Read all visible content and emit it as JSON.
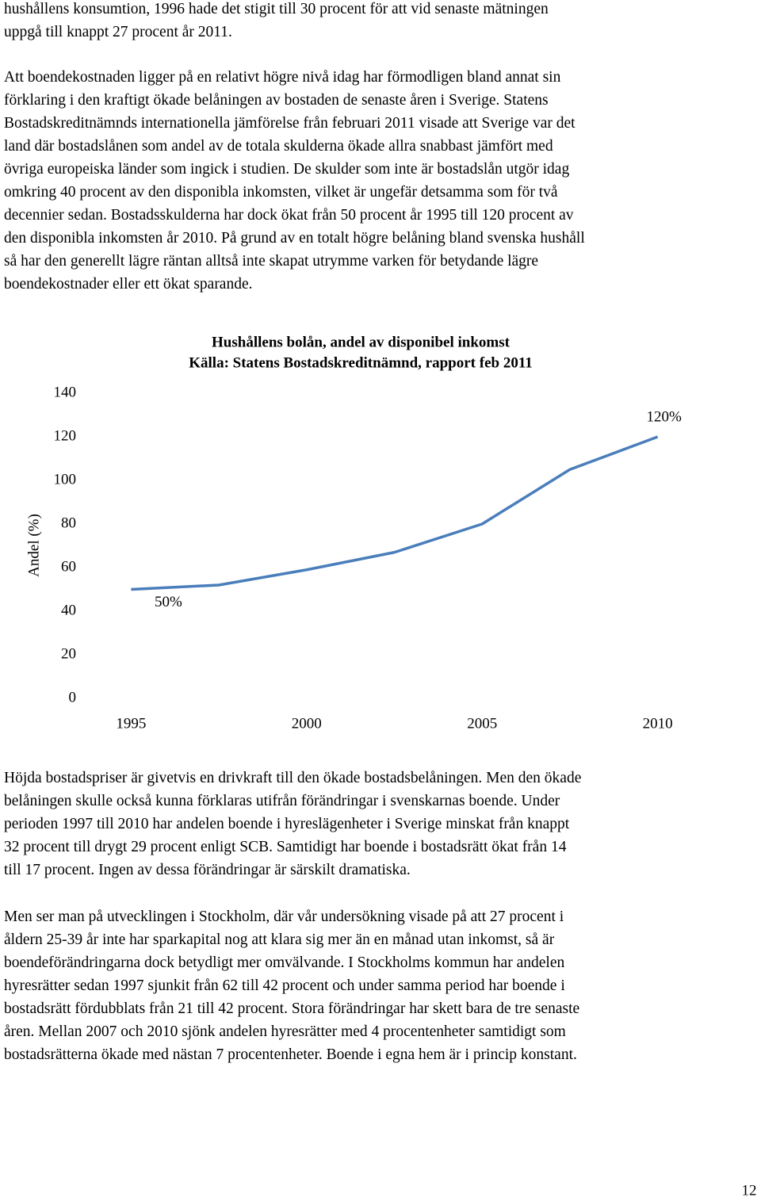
{
  "paragraphs": [
    [
      "hushållens konsumtion, 1996 hade det stigit till 30 procent för att vid senaste mätningen",
      "uppgå till knappt 27 procent år 2011."
    ],
    [
      "Att boendekostnaden ligger på en relativt högre nivå idag har förmodligen bland annat sin",
      "förklaring i den kraftigt ökade belåningen av bostaden de senaste åren i Sverige. Statens",
      "Bostadskreditnämnds internationella jämförelse från februari 2011 visade att Sverige var det",
      "land där bostadslånen som andel av de totala skulderna ökade allra snabbast jämfört med",
      "övriga europeiska länder som ingick i studien. De skulder som inte är bostadslån utgör idag",
      "omkring 40 procent av den disponibla inkomsten, vilket är ungefär detsamma som för två",
      "decennier sedan. Bostadsskulderna har dock ökat från 50 procent år 1995 till 120 procent av",
      "den disponibla inkomsten år 2010. På grund av en totalt högre belåning bland svenska hushåll",
      "så har den generellt lägre räntan alltså inte skapat utrymme varken för betydande lägre",
      "boendekostnader eller ett ökat sparande."
    ],
    [
      "Höjda bostadspriser är givetvis en drivkraft till den ökade bostadsbelåningen. Men den ökade",
      "belåningen skulle också kunna förklaras utifrån förändringar i svenskarnas boende. Under",
      "perioden 1997 till 2010 har andelen boende i hyreslägenheter i Sverige minskat från knappt",
      "32 procent till drygt 29 procent enligt SCB. Samtidigt har boende i bostadsrätt ökat från 14",
      "till 17 procent. Ingen av dessa förändringar är särskilt dramatiska."
    ],
    [
      "Men ser man på utvecklingen i Stockholm, där vår undersökning visade på att 27 procent i",
      "åldern 25-39 år inte har sparkapital nog att klara sig mer än en månad utan inkomst, så är",
      "boendeförändringarna dock betydligt mer omvälvande. I Stockholms kommun har andelen",
      "hyresrätter sedan 1997 sjunkit från 62 till 42 procent och under samma period har boende i",
      "bostadsrätt fördubblats från 21 till 42 procent. Stora förändringar har skett bara de tre senaste",
      "åren. Mellan 2007 och 2010 sjönk andelen hyresrätter med 4 procentenheter samtidigt som",
      "bostadsrätterna ökade med nästan 7 procentenheter. Boende i egna hem är i princip konstant."
    ]
  ],
  "chart_data": {
    "type": "line",
    "title": "Hushållens bolån, andel av disponibel inkomst",
    "subtitle": "Källa: Statens Bostadskreditnämnd, rapport feb 2011",
    "ylabel": "Andel (%)",
    "categories": [
      "1995",
      null,
      "2000",
      null,
      "2005",
      null,
      "2010"
    ],
    "values": [
      50,
      52,
      59,
      67,
      80,
      105,
      120
    ],
    "value_labels": [
      "50%",
      null,
      null,
      null,
      null,
      null,
      "120%"
    ],
    "color": "#4a7ebb",
    "ylim": [
      0,
      140
    ],
    "yticks": [
      0,
      20,
      40,
      60,
      80,
      100,
      120,
      140
    ],
    "grid": false
  },
  "page_number": "12"
}
